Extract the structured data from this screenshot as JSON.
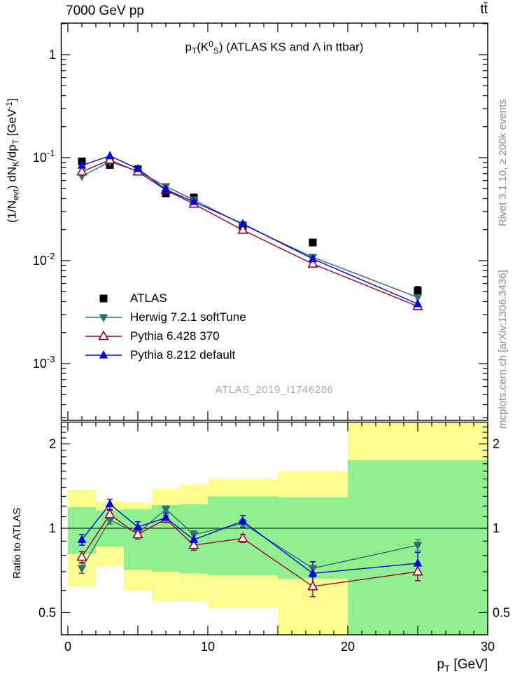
{
  "header": {
    "left": "7000 GeV pp",
    "right": "t#bar{t}"
  },
  "titles": {
    "main": "p_{T}(K^{0}_{S}) (ATLAS KS and #Lambda in ttbar)",
    "y_axis": "(1/N_{evt}) dN_{K}/dp_{T} [GeV^{-1}]",
    "x_axis": "p_{T} [GeV]",
    "ratio_y_axis": "Ratio to ATLAS",
    "watermark": "ATLAS_2019_I1746286"
  },
  "side_notes": {
    "top_right": "Rivet 3.1.10, ≥ 200k events",
    "bottom_right": "mcplots.cern.ch [arXiv:1306.3436]"
  },
  "colors": {
    "atlas": "#000000",
    "herwig": "#2f6f6f",
    "pythia6": "#980030",
    "pythia8": "#0000e6",
    "band_yellow": "#fcfc8f",
    "band_green": "#90f090",
    "frame": "#000000",
    "watermark": "#a9a9a9",
    "side_note": "#8c8c8c"
  },
  "chart_data": {
    "type": "line",
    "title": "p_{T}(K^{0}_{S}) (ATLAS KS and #Lambda in ttbar)",
    "xlabel": "p_{T} [GeV]",
    "ylabel": "(1/N_{evt}) dN_{K}/dp_{T} [GeV^{-1}]",
    "grid": false,
    "legend_position": "middle-left",
    "x": [
      1,
      3,
      5,
      7,
      9,
      12.5,
      17.5,
      25
    ],
    "x_axis": {
      "range": [
        -0.5,
        30
      ],
      "major_tick_step": 5,
      "minor_tick_step": 1,
      "labeled_ticks": [
        0,
        10,
        20,
        30
      ]
    },
    "main_panel": {
      "yscale": "log",
      "ylim": [
        0.00028,
        2.0
      ],
      "yticks": [
        {
          "value": 1,
          "label": "1"
        },
        {
          "value": 0.1,
          "label": "10^{-1}"
        },
        {
          "value": 0.01,
          "label": "10^{-2}"
        },
        {
          "value": 0.001,
          "label": "10^{-3}"
        }
      ]
    },
    "series": [
      {
        "name": "ATLAS",
        "marker": "filled-square",
        "color": "#000000",
        "line": false,
        "values": [
          0.092,
          0.085,
          0.077,
          0.045,
          0.041,
          0.0215,
          0.015,
          0.0051
        ],
        "errors": [
          0.004,
          0.003,
          0.003,
          0.002,
          0.002,
          0.0012,
          0.001,
          0.0005
        ]
      },
      {
        "name": "Herwig 7.2.1 softTune",
        "marker": "filled-triangle-down",
        "color": "#2f6f6f",
        "line": true,
        "values": [
          0.066,
          0.091,
          0.074,
          0.0525,
          0.039,
          0.0224,
          0.0108,
          0.0044
        ],
        "ratio": [
          0.72,
          1.07,
          0.96,
          1.17,
          0.95,
          1.04,
          0.72,
          0.87
        ],
        "ratio_err": [
          0.03,
          0.035,
          0.03,
          0.03,
          0.03,
          0.035,
          0.04,
          0.04
        ]
      },
      {
        "name": "Pythia 6.428 370",
        "marker": "open-triangle-up",
        "color": "#980030",
        "line": true,
        "values": [
          0.073,
          0.095,
          0.073,
          0.0485,
          0.0355,
          0.0198,
          0.0093,
          0.0036
        ],
        "ratio": [
          0.79,
          1.12,
          0.95,
          1.08,
          0.87,
          0.92,
          0.62,
          0.7
        ],
        "ratio_err": [
          0.035,
          0.04,
          0.035,
          0.03,
          0.035,
          0.03,
          0.05,
          0.05
        ]
      },
      {
        "name": "Pythia 8.212 default",
        "marker": "filled-triangle-up",
        "color": "#0000e6",
        "line": true,
        "values": [
          0.084,
          0.104,
          0.078,
          0.049,
          0.0373,
          0.0228,
          0.0104,
          0.0038
        ],
        "ratio": [
          0.91,
          1.22,
          1.01,
          1.09,
          0.91,
          1.06,
          0.69,
          0.75
        ],
        "ratio_err": [
          0.04,
          0.05,
          0.045,
          0.04,
          0.04,
          0.05,
          0.07,
          0.07
        ]
      }
    ],
    "ratio_panel": {
      "ylabel": "Ratio to ATLAS",
      "yscale": "log",
      "ylim": [
        0.42,
        2.4
      ],
      "reference_line": 1,
      "yticks": [
        {
          "value": 2,
          "label": "2"
        },
        {
          "value": 1,
          "label": "1"
        },
        {
          "value": 0.5,
          "label": "0.5"
        }
      ],
      "bands": {
        "bin_edges": [
          0,
          2,
          4,
          6,
          8,
          10,
          15,
          20,
          30
        ],
        "yellow": [
          [
            0.62,
            1.37
          ],
          [
            0.73,
            1.25
          ],
          [
            0.6,
            1.23
          ],
          [
            0.55,
            1.38
          ],
          [
            0.55,
            1.43
          ],
          [
            0.52,
            1.5
          ],
          [
            0.41,
            1.6
          ],
          [
            0.41,
            2.4
          ]
        ],
        "green": [
          [
            0.81,
            1.19
          ],
          [
            0.86,
            1.16
          ],
          [
            0.71,
            1.17
          ],
          [
            0.7,
            1.21
          ],
          [
            0.69,
            1.22
          ],
          [
            0.68,
            1.3
          ],
          [
            0.66,
            1.29
          ],
          [
            0.41,
            1.75
          ]
        ]
      }
    }
  }
}
